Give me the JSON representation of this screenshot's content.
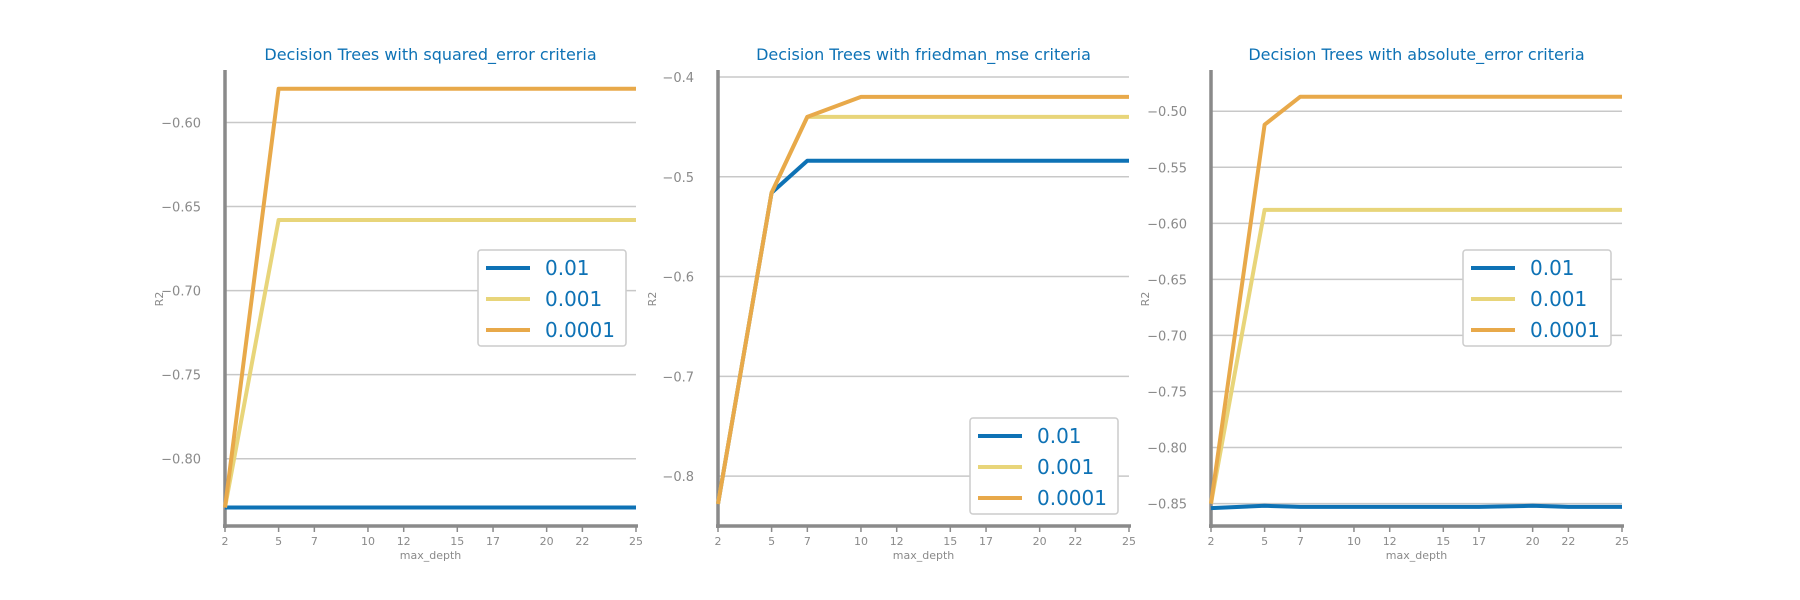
{
  "colors": {
    "series": [
      "#0e72b5",
      "#e8d57a",
      "#e8a94a"
    ],
    "text": "#0e72b5",
    "axis": "#8a8a8a",
    "grid": "#c8c8c8"
  },
  "chart_data": [
    {
      "type": "line",
      "title": "Decision Trees with squared_error criteria",
      "xlabel": "max_depth",
      "ylabel": "R2",
      "x": [
        2,
        5,
        7,
        10,
        12,
        15,
        17,
        20,
        22,
        25
      ],
      "xticks": [
        2,
        5,
        7,
        10,
        12,
        15,
        17,
        20,
        22,
        25
      ],
      "yticks": [
        -0.8,
        -0.75,
        -0.7,
        -0.65,
        -0.6
      ],
      "ytick_labels": [
        "−0.80",
        "−0.75",
        "−0.70",
        "−0.65",
        "−0.60"
      ],
      "xlim": [
        2,
        25
      ],
      "ylim": [
        -0.84,
        -0.57
      ],
      "legend_position": "center-right",
      "series": [
        {
          "name": "0.01",
          "values": [
            -0.829,
            -0.829,
            -0.829,
            -0.829,
            -0.829,
            -0.829,
            -0.829,
            -0.829,
            -0.829,
            -0.829
          ]
        },
        {
          "name": "0.001",
          "values": [
            -0.829,
            -0.658,
            -0.658,
            -0.658,
            -0.658,
            -0.658,
            -0.658,
            -0.658,
            -0.658,
            -0.658
          ]
        },
        {
          "name": "0.0001",
          "values": [
            -0.829,
            -0.58,
            -0.58,
            -0.58,
            -0.58,
            -0.58,
            -0.58,
            -0.58,
            -0.58,
            -0.58
          ]
        }
      ]
    },
    {
      "type": "line",
      "title": "Decision Trees with friedman_mse criteria",
      "xlabel": "max_depth",
      "ylabel": "R2",
      "x": [
        2,
        5,
        7,
        10,
        12,
        15,
        17,
        20,
        22,
        25
      ],
      "xticks": [
        2,
        5,
        7,
        10,
        12,
        15,
        17,
        20,
        22,
        25
      ],
      "yticks": [
        -0.8,
        -0.7,
        -0.6,
        -0.5,
        -0.4
      ],
      "ytick_labels": [
        "−0.8",
        "−0.7",
        "−0.6",
        "−0.5",
        "−0.4"
      ],
      "xlim": [
        2,
        25
      ],
      "ylim": [
        -0.85,
        -0.395
      ],
      "legend_position": "lower-right",
      "series": [
        {
          "name": "0.01",
          "values": [
            -0.828,
            -0.516,
            -0.484,
            -0.484,
            -0.484,
            -0.484,
            -0.484,
            -0.484,
            -0.484,
            -0.484
          ]
        },
        {
          "name": "0.001",
          "values": [
            -0.828,
            -0.516,
            -0.44,
            -0.44,
            -0.44,
            -0.44,
            -0.44,
            -0.44,
            -0.44,
            -0.44
          ]
        },
        {
          "name": "0.0001",
          "values": [
            -0.828,
            -0.516,
            -0.44,
            -0.42,
            -0.42,
            -0.42,
            -0.42,
            -0.42,
            -0.42,
            -0.42
          ]
        }
      ]
    },
    {
      "type": "line",
      "title": "Decision Trees with absolute_error criteria",
      "xlabel": "max_depth",
      "ylabel": "R2",
      "x": [
        2,
        5,
        7,
        10,
        12,
        15,
        17,
        20,
        22,
        25
      ],
      "xticks": [
        2,
        5,
        7,
        10,
        12,
        15,
        17,
        20,
        22,
        25
      ],
      "yticks": [
        -0.85,
        -0.8,
        -0.75,
        -0.7,
        -0.65,
        -0.6,
        -0.55,
        -0.5
      ],
      "ytick_labels": [
        "−0.85",
        "−0.80",
        "−0.75",
        "−0.70",
        "−0.65",
        "−0.60",
        "−0.55",
        "−0.50"
      ],
      "xlim": [
        2,
        25
      ],
      "ylim": [
        -0.87,
        -0.465
      ],
      "legend_position": "center-right",
      "series": [
        {
          "name": "0.01",
          "values": [
            -0.854,
            -0.852,
            -0.853,
            -0.853,
            -0.853,
            -0.853,
            -0.853,
            -0.852,
            -0.853,
            -0.853
          ]
        },
        {
          "name": "0.001",
          "values": [
            -0.85,
            -0.588,
            -0.588,
            -0.588,
            -0.588,
            -0.588,
            -0.588,
            -0.588,
            -0.588,
            -0.588
          ]
        },
        {
          "name": "0.0001",
          "values": [
            -0.85,
            -0.512,
            -0.487,
            -0.487,
            -0.487,
            -0.487,
            -0.487,
            -0.487,
            -0.487,
            -0.487
          ]
        }
      ]
    }
  ]
}
